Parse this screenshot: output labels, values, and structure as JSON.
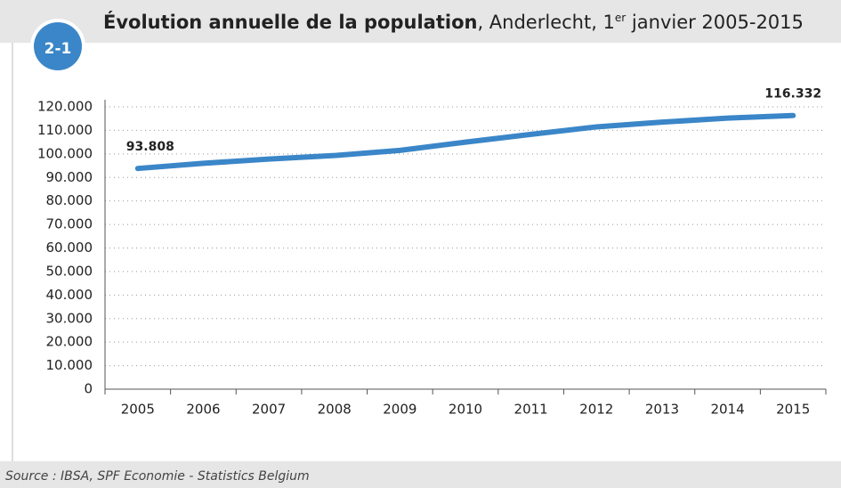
{
  "chart_data": {
    "type": "line",
    "badge": "2-1",
    "title": "Évolution annuelle de la population",
    "subtitle_parts": [
      ", Anderlecht, 1",
      "er",
      " janvier 2005-2015"
    ],
    "source": "Source : IBSA, SPF Economie - Statistics Belgium",
    "categories": [
      "2005",
      "2006",
      "2007",
      "2008",
      "2009",
      "2010",
      "2011",
      "2012",
      "2013",
      "2014",
      "2015"
    ],
    "series": [
      {
        "name": "Population",
        "color": "#3a86c8",
        "values": [
          93808,
          96000,
          97800,
          99300,
          101500,
          105000,
          108300,
          111500,
          113500,
          115200,
          116332
        ],
        "value_labels": [
          "93.808",
          null,
          null,
          null,
          null,
          null,
          null,
          null,
          null,
          null,
          "116.332"
        ]
      }
    ],
    "ylim": [
      0,
      120000
    ],
    "yticks": [
      0,
      {
        "value": 10000,
        "label": "10.000"
      },
      {
        "value": 20000,
        "label": "20.000"
      },
      {
        "value": 30000,
        "label": "30.000"
      },
      {
        "value": 40000,
        "label": "40.000"
      },
      {
        "value": 50000,
        "label": "50.000"
      },
      {
        "value": 60000,
        "label": "60.000"
      },
      {
        "value": 70000,
        "label": "70.000"
      },
      {
        "value": 80000,
        "label": "80.000"
      },
      {
        "value": 90000,
        "label": "90.000"
      },
      {
        "value": 100000,
        "label": "100.000"
      },
      {
        "value": 110000,
        "label": "110.000"
      },
      {
        "value": 120000,
        "label": "120.000"
      }
    ],
    "grid": true
  }
}
